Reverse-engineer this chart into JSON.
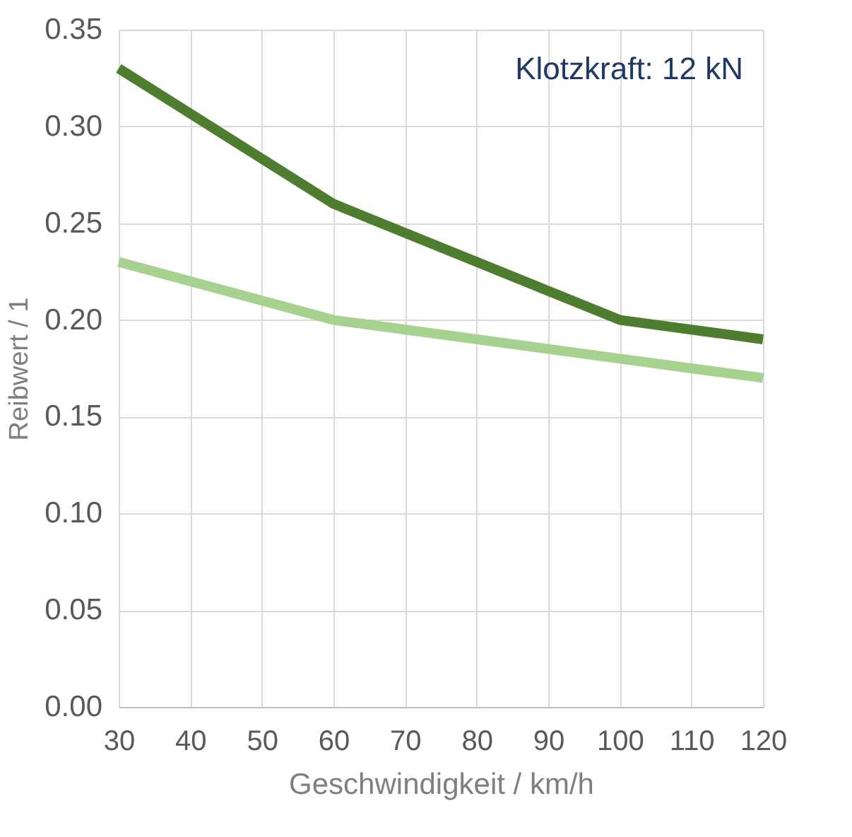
{
  "chart_data": {
    "type": "line",
    "xlabel": "Geschwindigkeit / km/h",
    "ylabel": "Reibwert / 1",
    "annotations": [
      "Klotzkraft: 12 kN"
    ],
    "x": [
      30,
      60,
      100,
      120
    ],
    "series": [
      {
        "color": "#4e7d2f",
        "values": [
          0.33,
          0.26,
          0.2,
          0.19
        ]
      },
      {
        "color": "#a6d18e",
        "values": [
          0.23,
          0.2,
          0.18,
          0.17
        ]
      }
    ],
    "xlim": [
      30,
      120
    ],
    "xticks": [
      30,
      40,
      50,
      60,
      70,
      80,
      90,
      100,
      110,
      120
    ],
    "ylim": [
      0,
      0.35
    ],
    "yticks": [
      {
        "value": 0,
        "label": "0.00"
      },
      {
        "value": 0.05,
        "label": "0.05"
      },
      {
        "value": 0.1,
        "label": "0.10"
      },
      {
        "value": 0.15,
        "label": "0.15"
      },
      {
        "value": 0.2,
        "label": "0.20"
      },
      {
        "value": 0.25,
        "label": "0.25"
      },
      {
        "value": 0.3,
        "label": "0.30"
      },
      {
        "value": 0.35,
        "label": "0.35"
      }
    ],
    "grid": true,
    "legend": false,
    "marker": "none",
    "line_style": "solid"
  }
}
